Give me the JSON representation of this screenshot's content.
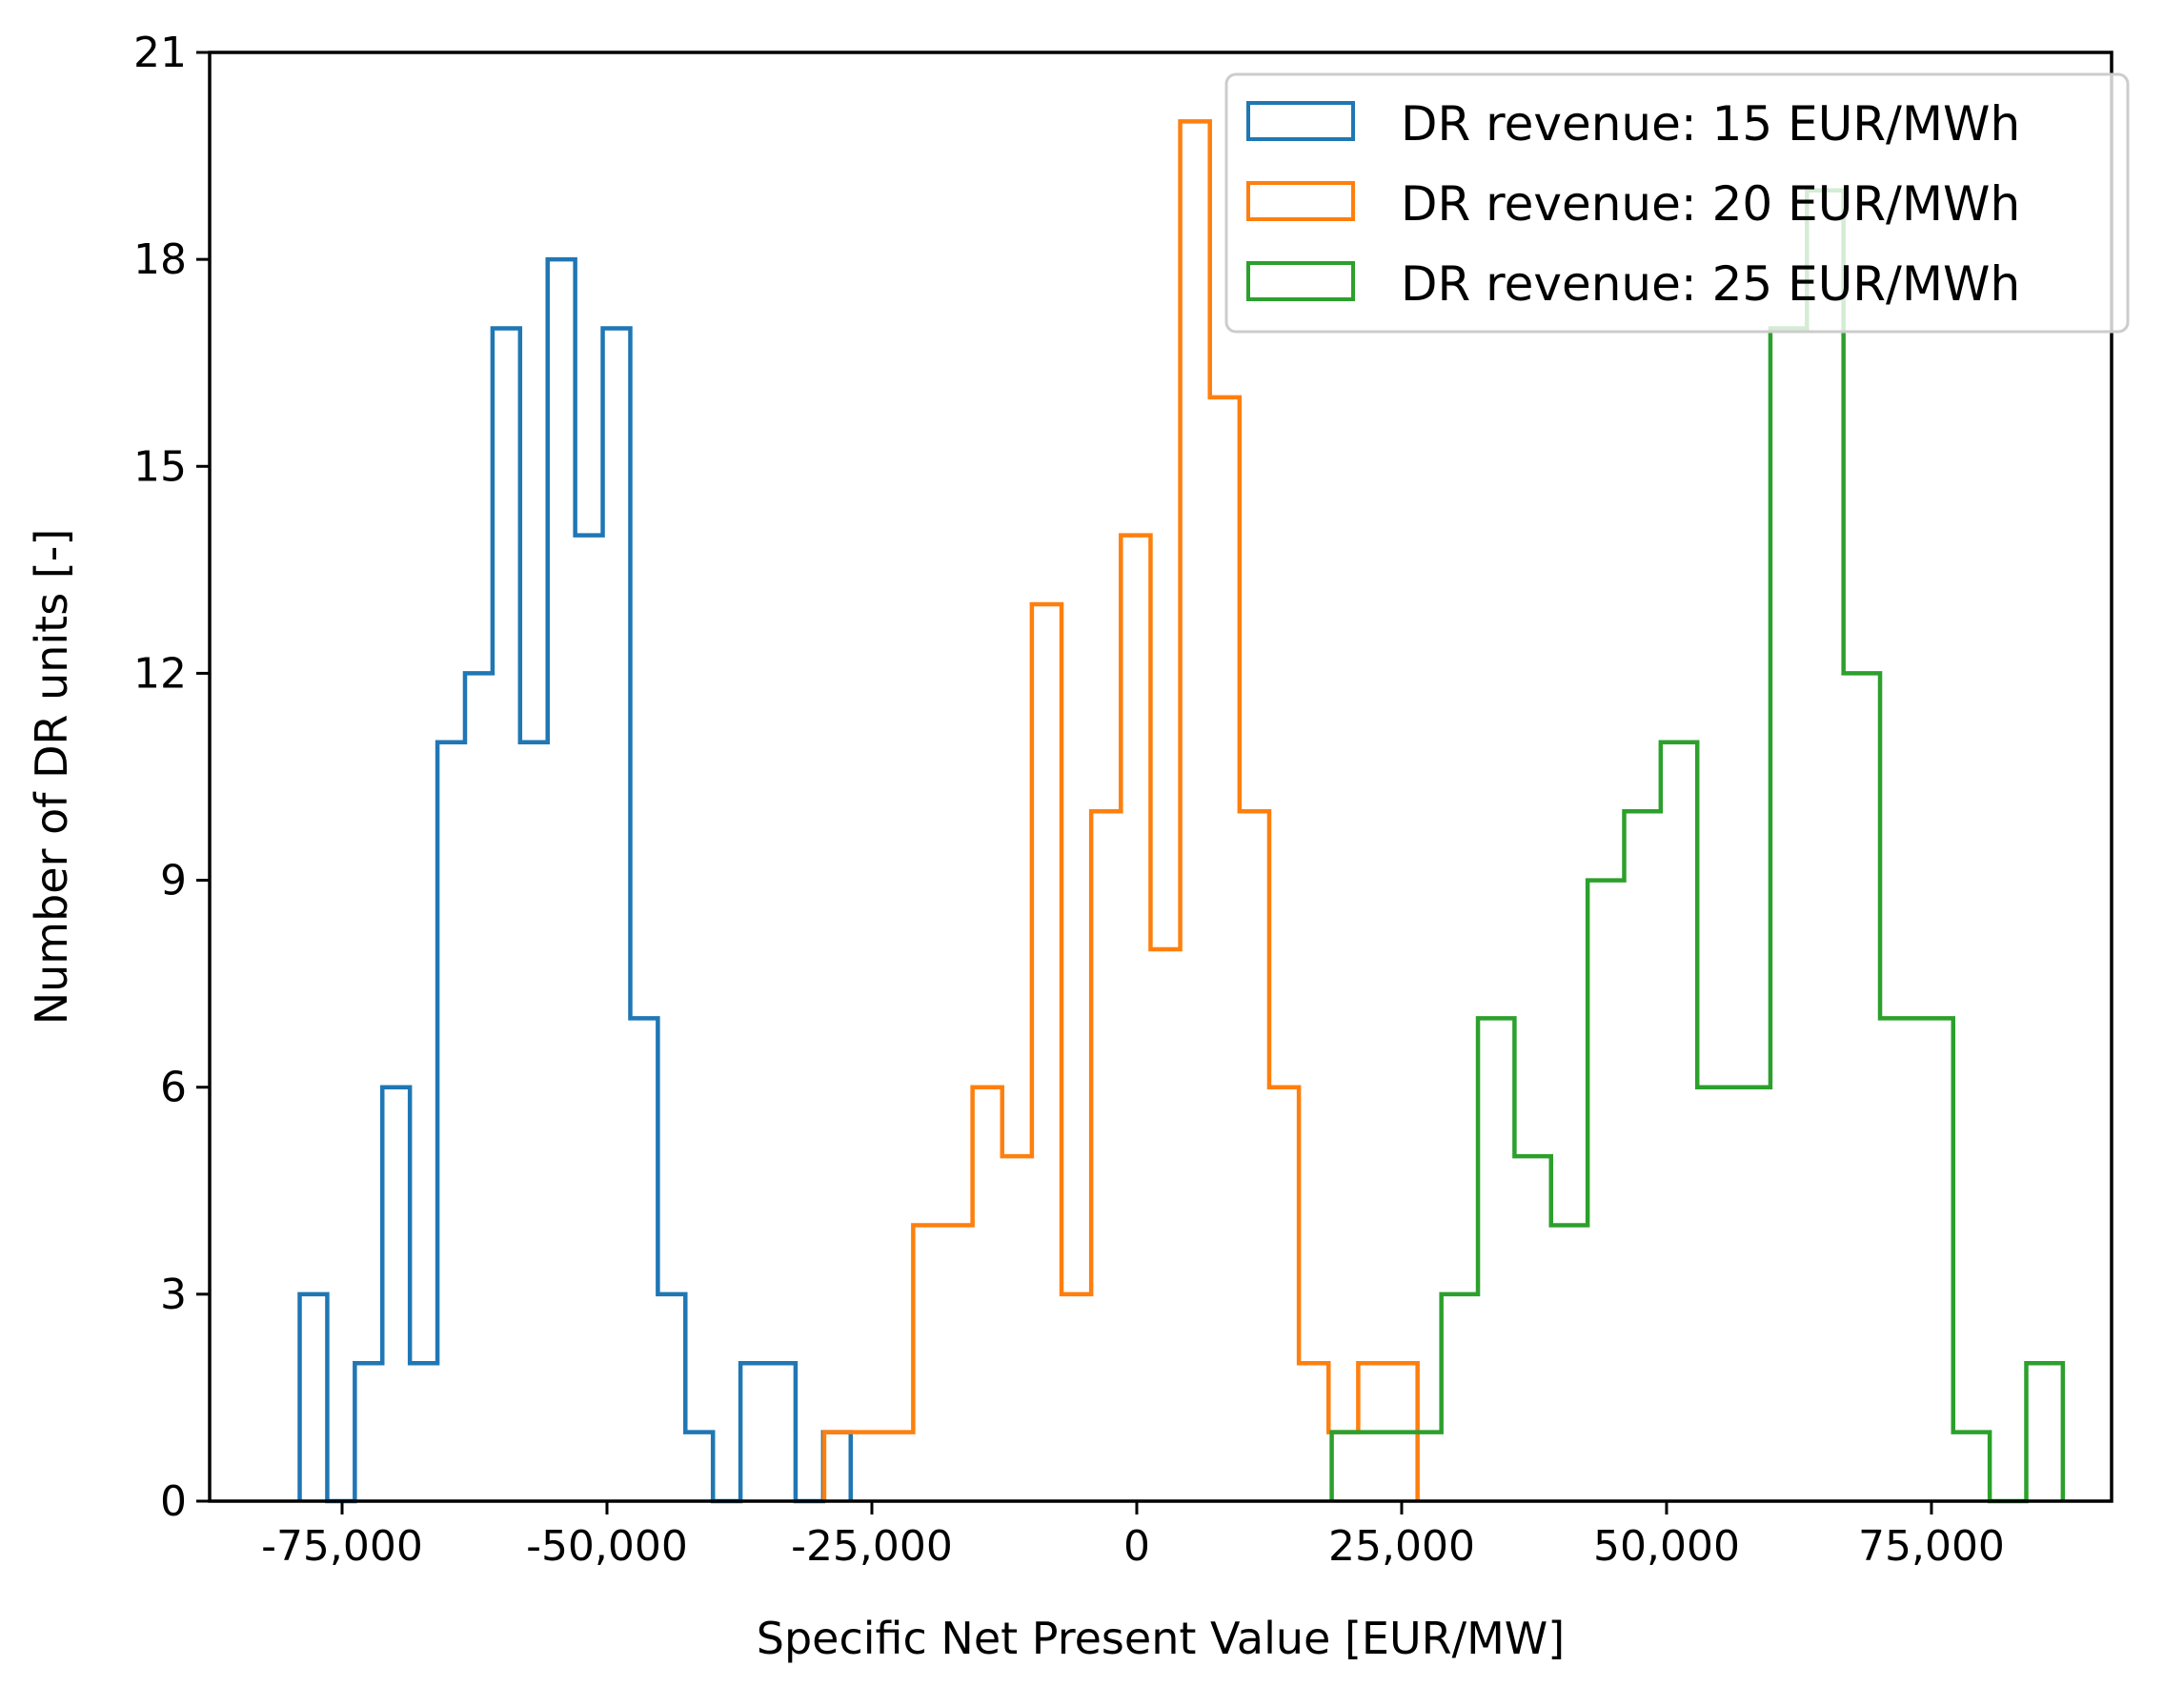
{
  "chart_data": {
    "type": "histogram",
    "title": "",
    "xlabel": "Specific Net Present Value [EUR/MW]",
    "ylabel": "Number of DR units [-]",
    "xlim": [
      -87500,
      92000
    ],
    "ylim": [
      0,
      21
    ],
    "xticks": [
      -75000,
      -50000,
      -25000,
      0,
      25000,
      50000,
      75000
    ],
    "xtick_labels": [
      "-75,000",
      "-50,000",
      "-25,000",
      "0",
      "25,000",
      "50,000",
      "75,000"
    ],
    "yticks": [
      0,
      3,
      6,
      9,
      12,
      15,
      18,
      21
    ],
    "ytick_labels": [
      "0",
      "3",
      "6",
      "9",
      "12",
      "15",
      "18",
      "21"
    ],
    "grid": false,
    "legend_position": "top-right",
    "series": [
      {
        "name": "DR revenue: 15 EUR/MWh",
        "color": "#1f77b4",
        "bin_width": 2600,
        "start": -79000,
        "counts": [
          3,
          0,
          2,
          6,
          2,
          11,
          12,
          17,
          11,
          18,
          14,
          17,
          7,
          3,
          1,
          0,
          2,
          2,
          0,
          1
        ]
      },
      {
        "name": "DR revenue: 20 EUR/MWh",
        "color": "#ff7f0e",
        "bin_width": 2800,
        "start": -29500,
        "counts": [
          1,
          1,
          1,
          4,
          4,
          6,
          5,
          13,
          3,
          10,
          14,
          8,
          20,
          16,
          10,
          6,
          2,
          1,
          2,
          2
        ]
      },
      {
        "name": "DR revenue: 25 EUR/MWh",
        "color": "#2ca02c",
        "bin_width": 3450,
        "start": 18400,
        "counts": [
          1,
          1,
          1,
          3,
          7,
          5,
          4,
          9,
          10,
          11,
          6,
          6,
          17,
          19,
          12,
          7,
          7,
          1,
          0,
          2
        ]
      }
    ]
  }
}
